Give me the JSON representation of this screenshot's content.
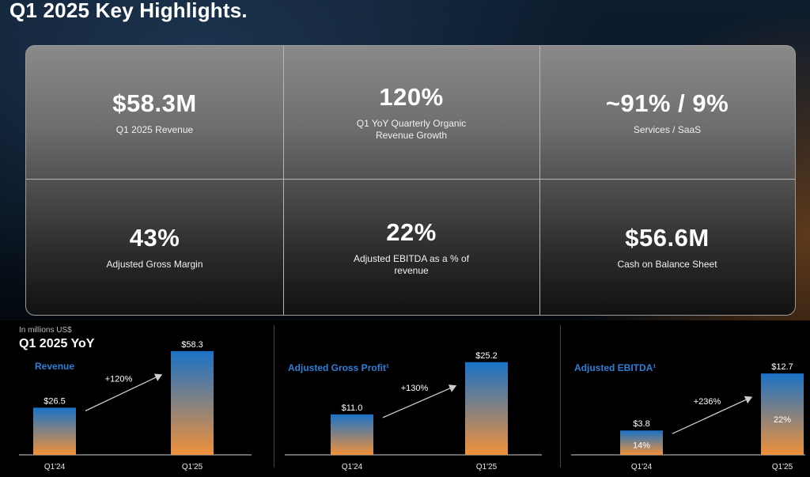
{
  "title": "Q1 2025 Key Highlights.",
  "kpis": [
    {
      "value": "$58.3M",
      "label": "Q1 2025 Revenue"
    },
    {
      "value": "120%",
      "label": "Q1 YoY Quarterly Organic Revenue Growth"
    },
    {
      "value": "~91% / 9%",
      "label": "Services / SaaS"
    },
    {
      "value": "43%",
      "label": "Adjusted Gross Margin"
    },
    {
      "value": "22%",
      "label": "Adjusted EBITDA as a % of revenue"
    },
    {
      "value": "$56.6M",
      "label": "Cash on Balance Sheet"
    }
  ],
  "section": {
    "unit_note": "In millions US$",
    "title": "Q1 2025 YoY"
  },
  "colors": {
    "bar_top": "#1a72c7",
    "bar_bottom": "#f0913a",
    "series_title": "#2f7fd6",
    "arrow": "#cccccc"
  },
  "chart_data": [
    {
      "type": "bar",
      "title": "Revenue",
      "categories": [
        "Q1'24",
        "Q1'25"
      ],
      "values": [
        26.5,
        58.3
      ],
      "value_labels": [
        "$26.5",
        "$58.3"
      ],
      "inner_labels": [
        "",
        ""
      ],
      "growth_label": "+120%"
    },
    {
      "type": "bar",
      "title": "Adjusted Gross Profit¹",
      "categories": [
        "Q1'24",
        "Q1'25"
      ],
      "values": [
        11.0,
        25.2
      ],
      "value_labels": [
        "$11.0",
        "$25.2"
      ],
      "inner_labels": [
        "",
        ""
      ],
      "growth_label": "+130%"
    },
    {
      "type": "bar",
      "title": "Adjusted EBITDA¹",
      "categories": [
        "Q1'24",
        "Q1'25"
      ],
      "values": [
        3.8,
        12.7
      ],
      "value_labels": [
        "$3.8",
        "$12.7"
      ],
      "inner_labels": [
        "14%",
        "22%"
      ],
      "growth_label": "+236%"
    }
  ]
}
